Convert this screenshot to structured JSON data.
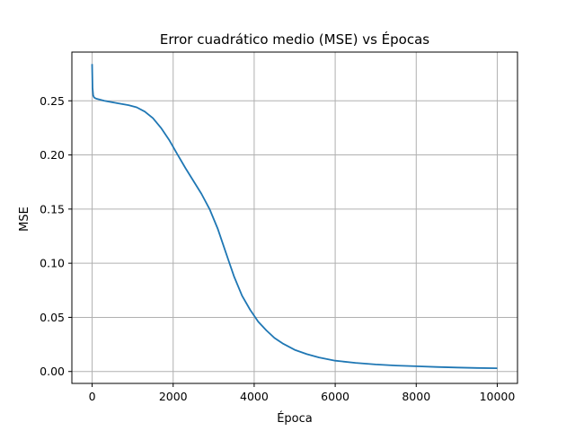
{
  "chart_data": {
    "type": "line",
    "title": "Error cuadrático medio (MSE) vs Épocas",
    "xlabel": "Época",
    "ylabel": "MSE",
    "xlim": [
      -500,
      10500
    ],
    "ylim": [
      -0.011,
      0.295
    ],
    "x_ticks": [
      0,
      2000,
      4000,
      6000,
      8000,
      10000
    ],
    "x_tick_labels": [
      "0",
      "2000",
      "4000",
      "6000",
      "8000",
      "10000"
    ],
    "y_ticks": [
      0.0,
      0.05,
      0.1,
      0.15,
      0.2,
      0.25
    ],
    "y_tick_labels": [
      "0.00",
      "0.05",
      "0.10",
      "0.15",
      "0.20",
      "0.25"
    ],
    "grid": true,
    "series": [
      {
        "color": "#1f77b4",
        "x": [
          0,
          10,
          25,
          50,
          100,
          300,
          600,
          900,
          1100,
          1300,
          1500,
          1700,
          1900,
          2100,
          2300,
          2500,
          2700,
          2900,
          3100,
          3300,
          3500,
          3700,
          3900,
          4100,
          4300,
          4500,
          4700,
          5000,
          5300,
          5600,
          6000,
          6500,
          7000,
          7500,
          8000,
          8500,
          9000,
          9500,
          10000
        ],
        "y": [
          0.284,
          0.262,
          0.255,
          0.253,
          0.252,
          0.25,
          0.248,
          0.246,
          0.244,
          0.24,
          0.234,
          0.225,
          0.214,
          0.201,
          0.188,
          0.176,
          0.164,
          0.15,
          0.132,
          0.11,
          0.088,
          0.07,
          0.057,
          0.046,
          0.038,
          0.031,
          0.026,
          0.02,
          0.016,
          0.013,
          0.01,
          0.008,
          0.0065,
          0.0055,
          0.0048,
          0.0042,
          0.0037,
          0.0033,
          0.003
        ]
      }
    ]
  }
}
